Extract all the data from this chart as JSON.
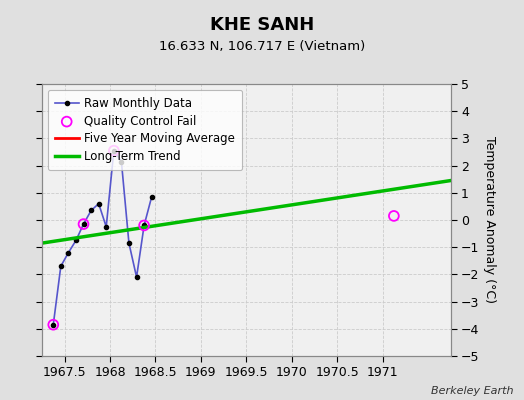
{
  "title": "KHE SANH",
  "subtitle": "16.633 N, 106.717 E (Vietnam)",
  "ylabel": "Temperature Anomaly (°C)",
  "credit": "Berkeley Earth",
  "ylim": [
    -5,
    5
  ],
  "xlim": [
    1967.25,
    1971.75
  ],
  "xticks": [
    1967.5,
    1968.0,
    1968.5,
    1969.0,
    1969.5,
    1970.0,
    1970.5,
    1971.0
  ],
  "yticks": [
    -5,
    -4,
    -3,
    -2,
    -1,
    0,
    1,
    2,
    3,
    4,
    5
  ],
  "raw_x": [
    1967.375,
    1967.458,
    1967.542,
    1967.625,
    1967.708,
    1967.792,
    1967.875,
    1967.958,
    1968.042,
    1968.125,
    1968.208,
    1968.292,
    1968.375,
    1968.458
  ],
  "raw_y": [
    -3.85,
    -1.7,
    -1.2,
    -0.75,
    -0.15,
    0.35,
    0.6,
    -0.25,
    2.55,
    2.15,
    -0.85,
    -2.1,
    -0.2,
    0.85
  ],
  "qc_x": [
    1967.375,
    1967.708,
    1968.042,
    1968.375,
    1971.125
  ],
  "qc_y": [
    -3.85,
    -0.15,
    2.55,
    -0.2,
    0.15
  ],
  "trend_x": [
    1967.25,
    1971.75
  ],
  "trend_y": [
    -0.85,
    1.45
  ],
  "bg_color": "#e0e0e0",
  "plot_bg_color": "#f0f0f0",
  "raw_line_color": "#5555cc",
  "raw_marker_color": "black",
  "qc_color": "magenta",
  "trend_color": "#00bb00",
  "mavg_color": "red",
  "legend_bg": "white"
}
